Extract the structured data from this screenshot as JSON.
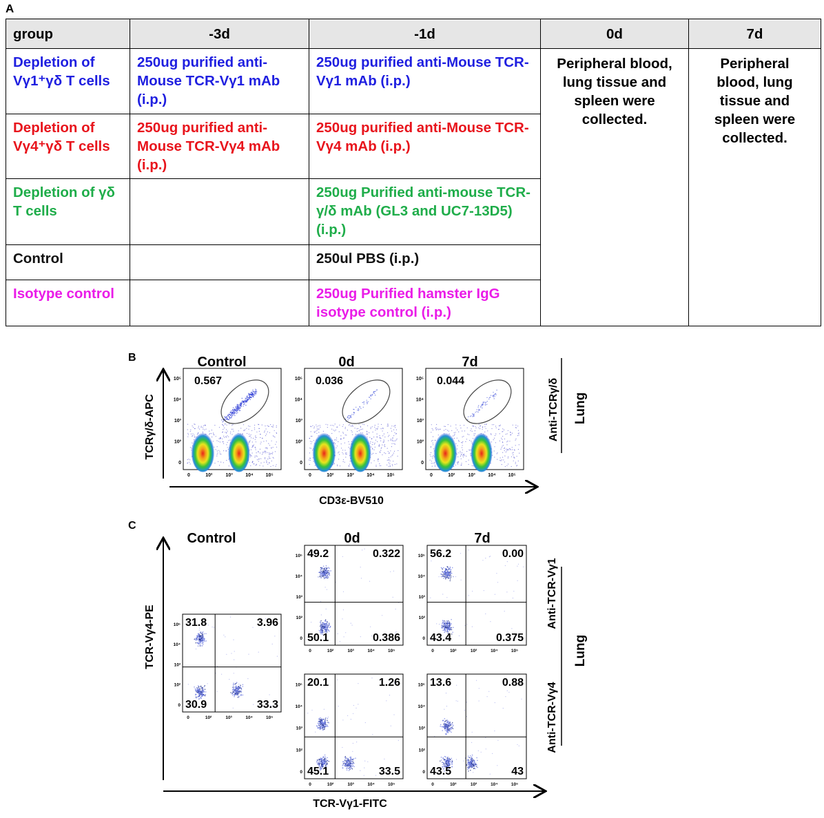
{
  "panel_labels": {
    "a": "A",
    "b": "B",
    "c": "C"
  },
  "table": {
    "headers": [
      "group",
      "-3d",
      "-1d",
      "0d",
      "7d"
    ],
    "rows": [
      {
        "group": "Depletion of Vγ1⁺γδ T cells",
        "d3": "250ug purified anti-Mouse TCR-Vγ1 mAb (i.p.)",
        "d1": "250ug purified anti-Mouse TCR-Vγ1 mAb (i.p.)",
        "color": "#1f1fe0"
      },
      {
        "group": "Depletion of Vγ4⁺γδ T cells",
        "d3": "250ug purified anti-Mouse TCR-Vγ4 mAb (i.p.)",
        "d1": "250ug purified anti-Mouse TCR-Vγ4 mAb (i.p.)",
        "color": "#e8141c"
      },
      {
        "group": "Depletion of γδ T cells",
        "d3": "",
        "d1": "250ug Purified anti-mouse TCR-γ/δ mAb (GL3 and UC7-13D5) (i.p.)",
        "color": "#1fad4a"
      },
      {
        "group": "Control",
        "d3": "",
        "d1": "250ul PBS (i.p.)",
        "color": "#111111"
      },
      {
        "group": "Isotype control",
        "d3": "",
        "d1": "250ug Purified hamster IgG isotype control (i.p.)",
        "color": "#ea1ce8"
      }
    ],
    "d0_text": "Peripheral blood, lung tissue and spleen were collected.",
    "d7_text": "Peripheral blood, lung tissue and spleen were collected."
  },
  "panel_b": {
    "plot_titles": [
      "Control",
      "0d",
      "7d"
    ],
    "gate_values": [
      "0.567",
      "0.036",
      "0.044"
    ],
    "y_label": "TCRγ/δ-APC",
    "x_label": "CD3ε-BV510",
    "side_label": "Anti-TCRγ/δ",
    "tissue_label": "Lung",
    "tick_labels": [
      "0",
      "10²",
      "10³",
      "10⁴",
      "10⁵"
    ]
  },
  "panel_c": {
    "column_titles": [
      "Control",
      "0d",
      "7d"
    ],
    "y_label": "TCR-Vγ4-PE",
    "x_label": "TCR-Vγ1-FITC",
    "side_labels": [
      "Anti-TCR-Vγ1",
      "Anti-TCR-Vγ4"
    ],
    "tissue_label": "Lung",
    "quadrants": [
      {
        "id": "control",
        "ul": "31.8",
        "ur": "3.96",
        "ll": "30.9",
        "lr": "33.3"
      },
      {
        "id": "vg1-0d",
        "ul": "49.2",
        "ur": "0.322",
        "ll": "50.1",
        "lr": "0.386"
      },
      {
        "id": "vg1-7d",
        "ul": "56.2",
        "ur": "0.00",
        "ll": "43.4",
        "lr": "0.375"
      },
      {
        "id": "vg4-0d",
        "ul": "20.1",
        "ur": "1.26",
        "ll": "45.1",
        "lr": "33.5"
      },
      {
        "id": "vg4-7d",
        "ul": "13.6",
        "ur": "0.88",
        "ll": "43.5",
        "lr": "43"
      }
    ]
  }
}
